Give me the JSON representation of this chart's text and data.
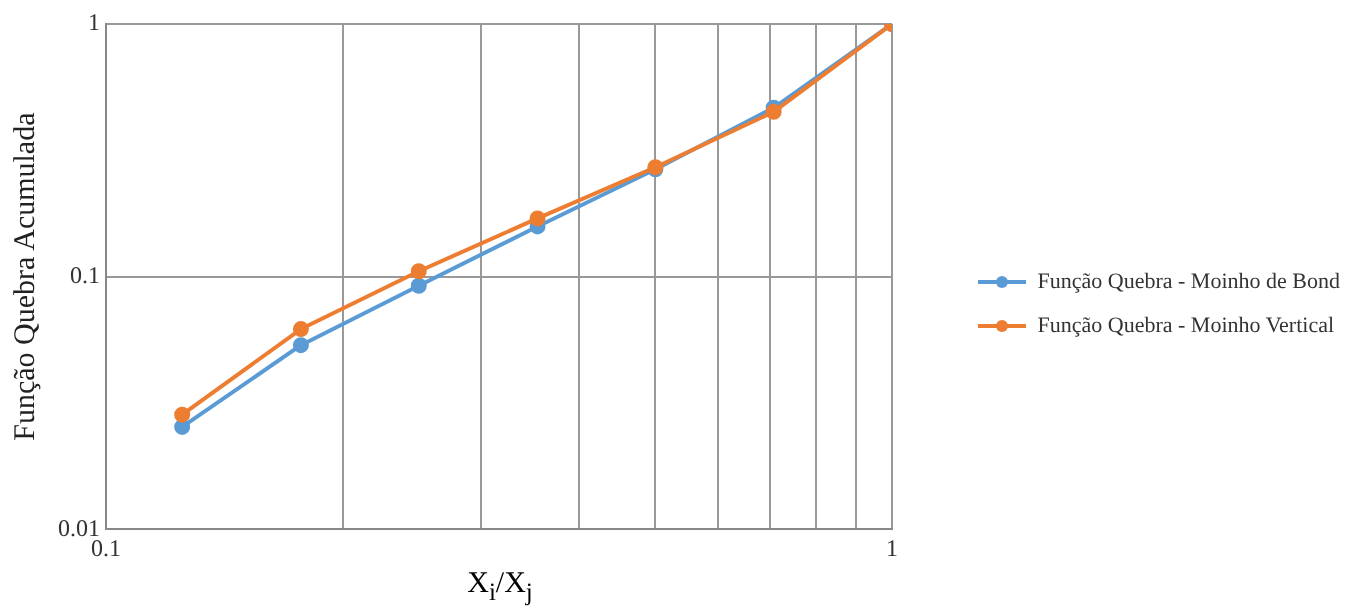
{
  "chart_data": {
    "type": "line",
    "xlabel": "X$_{i}$/X$_{j}$",
    "ylabel": "Função Quebra Acumulada",
    "x": [
      0.125,
      0.177,
      0.25,
      0.354,
      0.5,
      0.707,
      1
    ],
    "series": [
      {
        "name": "Função Quebra - Moinho de Bond",
        "color": "#5b9bd5",
        "values": [
          0.0254,
          0.0535,
          0.092,
          0.158,
          0.266,
          0.466,
          1
        ]
      },
      {
        "name": "Função Quebra - Moinho Vertical",
        "color": "#ed7d31",
        "values": [
          0.0284,
          0.062,
          0.105,
          0.17,
          0.271,
          0.449,
          1
        ]
      }
    ],
    "log": "xy",
    "xlim": [
      0.1,
      1
    ],
    "ylim": [
      0.01,
      1
    ],
    "xticks": [
      0.1,
      {
        "value": 0.2,
        "label": null
      },
      {
        "value": 0.3,
        "label": null
      },
      {
        "value": 0.4,
        "label": null
      },
      {
        "value": 0.5,
        "label": null
      },
      {
        "value": 0.6,
        "label": null
      },
      {
        "value": 0.7,
        "label": null
      },
      {
        "value": 0.8,
        "label": null
      },
      {
        "value": 0.9,
        "label": null
      },
      1
    ],
    "yticks": [
      0.01,
      0.1,
      1
    ],
    "grid": true,
    "legend": "right",
    "marker": "circle",
    "line_style": "solid"
  }
}
